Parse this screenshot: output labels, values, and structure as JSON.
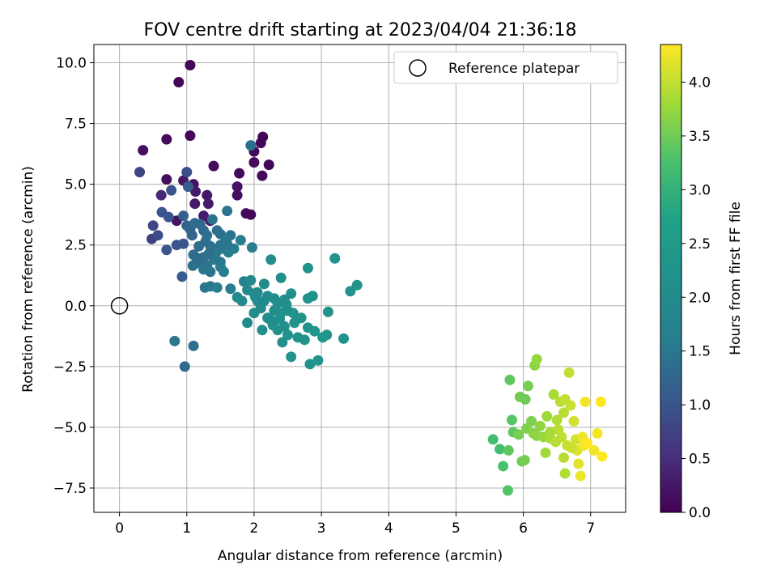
{
  "chart_data": {
    "type": "scatter",
    "title": "FOV centre drift starting at 2023/04/04 21:36:18",
    "xlabel": "Angular distance from reference (arcmin)",
    "ylabel": "Rotation from reference (arcmin)",
    "colorbar_label": "Hours from first FF file",
    "xlim": [
      -0.38,
      7.52
    ],
    "ylim": [
      -8.5,
      10.75
    ],
    "clim": [
      0,
      4.35
    ],
    "grid": true,
    "legend_position": "top-right",
    "colormap": "viridis",
    "x_ticks": [
      {
        "v": 0,
        "label": "0"
      },
      {
        "v": 1,
        "label": "1"
      },
      {
        "v": 2,
        "label": "2"
      },
      {
        "v": 3,
        "label": "3"
      },
      {
        "v": 4,
        "label": "4"
      },
      {
        "v": 5,
        "label": "5"
      },
      {
        "v": 6,
        "label": "6"
      },
      {
        "v": 7,
        "label": "7"
      }
    ],
    "y_ticks": [
      {
        "v": -7.5,
        "label": "−7.5"
      },
      {
        "v": -5,
        "label": "−5.0"
      },
      {
        "v": -2.5,
        "label": "−2.5"
      },
      {
        "v": 0,
        "label": "0.0"
      },
      {
        "v": 2.5,
        "label": "2.5"
      },
      {
        "v": 5,
        "label": "5.0"
      },
      {
        "v": 7.5,
        "label": "7.5"
      },
      {
        "v": 10,
        "label": "10.0"
      }
    ],
    "colorbar_ticks": [
      {
        "v": 0,
        "label": "0.0"
      },
      {
        "v": 0.5,
        "label": "0.5"
      },
      {
        "v": 1,
        "label": "1.0"
      },
      {
        "v": 1.5,
        "label": "1.5"
      },
      {
        "v": 2,
        "label": "2.0"
      },
      {
        "v": 2.5,
        "label": "2.5"
      },
      {
        "v": 3,
        "label": "3.0"
      },
      {
        "v": 3.5,
        "label": "3.5"
      },
      {
        "v": 4,
        "label": "4.0"
      }
    ],
    "reference": {
      "name": "Reference platepar",
      "x": 0,
      "y": 0
    },
    "points": [
      [
        1.05,
        9.9,
        0.05
      ],
      [
        0.88,
        9.2,
        0.08
      ],
      [
        1.05,
        7.0,
        0.05
      ],
      [
        0.7,
        6.85,
        0.1
      ],
      [
        0.35,
        6.4,
        0.15
      ],
      [
        2.1,
        6.7,
        0.05
      ],
      [
        2.13,
        6.95,
        0.04
      ],
      [
        2.0,
        6.35,
        0.1
      ],
      [
        1.95,
        6.6,
        1.4
      ],
      [
        2.0,
        5.9,
        0.1
      ],
      [
        2.12,
        5.35,
        0.08
      ],
      [
        2.22,
        5.8,
        0.06
      ],
      [
        1.4,
        5.75,
        0.12
      ],
      [
        1.78,
        5.45,
        0.1
      ],
      [
        1.75,
        4.9,
        0.2
      ],
      [
        1.75,
        4.55,
        0.15
      ],
      [
        0.7,
        5.2,
        0.15
      ],
      [
        0.95,
        5.15,
        0.25
      ],
      [
        1.1,
        5.0,
        0.2
      ],
      [
        1.13,
        4.7,
        0.3
      ],
      [
        1.3,
        4.55,
        0.25
      ],
      [
        1.32,
        4.2,
        0.3
      ],
      [
        1.12,
        4.2,
        0.3
      ],
      [
        0.62,
        4.55,
        0.45
      ],
      [
        1.0,
        5.5,
        0.9
      ],
      [
        1.02,
        4.9,
        1.1
      ],
      [
        0.77,
        4.75,
        1.0
      ],
      [
        0.3,
        5.5,
        0.8
      ],
      [
        0.85,
        3.5,
        0.2
      ],
      [
        1.35,
        3.5,
        0.2
      ],
      [
        1.88,
        3.8,
        0.1
      ],
      [
        1.95,
        3.75,
        0.05
      ],
      [
        1.25,
        3.7,
        0.3
      ],
      [
        0.5,
        3.3,
        0.8
      ],
      [
        0.48,
        2.75,
        0.7
      ],
      [
        0.57,
        2.9,
        0.9
      ],
      [
        0.63,
        3.85,
        1.0
      ],
      [
        0.73,
        3.65,
        1.0
      ],
      [
        0.7,
        2.3,
        1.0
      ],
      [
        0.85,
        2.5,
        1.0
      ],
      [
        0.95,
        2.55,
        1.0
      ],
      [
        0.93,
        1.2,
        1.1
      ],
      [
        0.95,
        3.7,
        1.15
      ],
      [
        1.0,
        3.3,
        1.2
      ],
      [
        1.05,
        3.15,
        1.2
      ],
      [
        1.08,
        2.9,
        1.25
      ],
      [
        1.12,
        3.4,
        1.3
      ],
      [
        1.2,
        3.35,
        1.3
      ],
      [
        1.25,
        3.1,
        1.3
      ],
      [
        1.3,
        2.9,
        1.35
      ],
      [
        1.38,
        3.55,
        1.4
      ],
      [
        1.45,
        3.1,
        1.4
      ],
      [
        1.5,
        2.95,
        1.4
      ],
      [
        1.6,
        3.9,
        1.45
      ],
      [
        1.65,
        2.9,
        1.45
      ],
      [
        1.1,
        2.1,
        1.3
      ],
      [
        1.15,
        1.9,
        1.35
      ],
      [
        1.2,
        1.75,
        1.4
      ],
      [
        1.25,
        2.0,
        1.4
      ],
      [
        1.3,
        1.65,
        1.45
      ],
      [
        1.35,
        1.4,
        1.45
      ],
      [
        1.4,
        1.9,
        1.5
      ],
      [
        1.45,
        2.25,
        1.5
      ],
      [
        1.5,
        1.8,
        1.5
      ],
      [
        1.55,
        2.35,
        1.55
      ],
      [
        1.58,
        2.65,
        1.55
      ],
      [
        1.62,
        2.2,
        1.6
      ],
      [
        1.7,
        2.35,
        1.6
      ],
      [
        1.8,
        2.7,
        1.6
      ],
      [
        1.35,
        2.45,
        1.4
      ],
      [
        1.28,
        2.65,
        1.4
      ],
      [
        1.42,
        2.0,
        1.5
      ],
      [
        1.18,
        2.45,
        1.35
      ],
      [
        1.09,
        1.65,
        1.4
      ],
      [
        1.25,
        1.5,
        1.5
      ],
      [
        1.5,
        1.6,
        1.55
      ],
      [
        1.55,
        1.4,
        1.6
      ],
      [
        1.35,
        0.8,
        1.5
      ],
      [
        1.27,
        0.75,
        1.5
      ],
      [
        1.45,
        0.75,
        1.6
      ],
      [
        1.65,
        0.7,
        1.6
      ],
      [
        1.97,
        2.4,
        1.6
      ],
      [
        1.85,
        1.0,
        1.65
      ],
      [
        1.1,
        -1.65,
        1.4
      ],
      [
        0.97,
        -2.5,
        1.3
      ],
      [
        0.82,
        -1.45,
        1.5
      ],
      [
        1.2,
        1.95,
        1.35
      ],
      [
        1.33,
        2.15,
        1.4
      ],
      [
        1.5,
        2.5,
        1.45
      ],
      [
        1.6,
        2.55,
        1.5
      ],
      [
        1.75,
        0.35,
        1.9
      ],
      [
        1.82,
        0.2,
        1.95
      ],
      [
        1.9,
        0.65,
        1.9
      ],
      [
        1.95,
        1.05,
        1.9
      ],
      [
        2.0,
        0.5,
        1.95
      ],
      [
        2.05,
        0.2,
        2.0
      ],
      [
        2.1,
        -0.1,
        2.0
      ],
      [
        2.15,
        0.9,
        2.0
      ],
      [
        2.2,
        0.4,
        2.05
      ],
      [
        2.25,
        1.9,
        2.1
      ],
      [
        2.3,
        0.3,
        2.05
      ],
      [
        2.35,
        0.1,
        2.1
      ],
      [
        2.4,
        -0.3,
        2.1
      ],
      [
        2.45,
        0.25,
        2.1
      ],
      [
        2.5,
        -0.2,
        2.15
      ],
      [
        2.55,
        0.5,
        2.15
      ],
      [
        1.9,
        -0.7,
        2.0
      ],
      [
        2.0,
        -0.3,
        2.05
      ],
      [
        2.12,
        -1.0,
        2.1
      ],
      [
        2.2,
        -0.5,
        2.1
      ],
      [
        2.28,
        -0.8,
        2.15
      ],
      [
        2.35,
        -1.0,
        2.15
      ],
      [
        2.42,
        -1.5,
        2.15
      ],
      [
        2.5,
        -1.2,
        2.2
      ],
      [
        2.55,
        -2.1,
        2.2
      ],
      [
        2.6,
        -0.7,
        2.2
      ],
      [
        2.65,
        -1.3,
        2.2
      ],
      [
        2.7,
        -0.5,
        2.25
      ],
      [
        2.75,
        -1.4,
        2.25
      ],
      [
        2.8,
        -0.9,
        2.25
      ],
      [
        2.83,
        -2.4,
        2.25
      ],
      [
        2.9,
        -1.05,
        2.3
      ],
      [
        2.95,
        -2.25,
        2.3
      ],
      [
        3.02,
        -1.3,
        2.3
      ],
      [
        3.08,
        -1.2,
        2.3
      ],
      [
        3.1,
        -0.25,
        2.25
      ],
      [
        3.33,
        -1.35,
        2.25
      ],
      [
        2.8,
        1.55,
        2.2
      ],
      [
        2.8,
        0.3,
        2.2
      ],
      [
        2.87,
        0.4,
        2.25
      ],
      [
        3.2,
        1.95,
        2.2
      ],
      [
        3.43,
        0.6,
        2.25
      ],
      [
        3.53,
        0.85,
        2.25
      ],
      [
        2.4,
        1.15,
        2.1
      ],
      [
        2.48,
        0.05,
        2.15
      ],
      [
        2.58,
        -0.3,
        2.2
      ],
      [
        2.3,
        -0.2,
        2.1
      ],
      [
        2.25,
        -0.6,
        2.05
      ],
      [
        2.15,
        0.2,
        2.0
      ],
      [
        2.05,
        0.55,
        1.95
      ],
      [
        2.02,
        0.35,
        2.0
      ],
      [
        2.38,
        -0.55,
        2.15
      ],
      [
        2.45,
        -0.85,
        2.15
      ],
      [
        5.55,
        -5.5,
        3.2
      ],
      [
        5.65,
        -5.9,
        3.2
      ],
      [
        5.7,
        -6.6,
        3.25
      ],
      [
        5.77,
        -7.6,
        3.3
      ],
      [
        5.8,
        -3.05,
        3.4
      ],
      [
        5.83,
        -4.7,
        3.35
      ],
      [
        5.85,
        -5.2,
        3.4
      ],
      [
        5.78,
        -5.95,
        3.4
      ],
      [
        5.95,
        -3.75,
        3.5
      ],
      [
        5.98,
        -6.4,
        3.5
      ],
      [
        6.03,
        -3.85,
        3.5
      ],
      [
        6.07,
        -3.3,
        3.55
      ],
      [
        6.12,
        -4.75,
        3.6
      ],
      [
        6.17,
        -2.45,
        3.7
      ],
      [
        6.2,
        -2.2,
        3.75
      ],
      [
        6.05,
        -5.05,
        3.6
      ],
      [
        5.93,
        -5.3,
        3.55
      ],
      [
        6.02,
        -6.35,
        3.55
      ],
      [
        6.15,
        -5.25,
        3.65
      ],
      [
        6.2,
        -5.35,
        3.7
      ],
      [
        6.25,
        -4.95,
        3.7
      ],
      [
        6.3,
        -5.4,
        3.75
      ],
      [
        6.35,
        -4.55,
        3.8
      ],
      [
        6.4,
        -5.45,
        3.85
      ],
      [
        6.45,
        -3.65,
        3.85
      ],
      [
        6.5,
        -4.7,
        3.9
      ],
      [
        6.52,
        -5.1,
        3.95
      ],
      [
        6.55,
        -3.95,
        3.95
      ],
      [
        6.6,
        -4.4,
        3.95
      ],
      [
        6.62,
        -3.85,
        4.0
      ],
      [
        6.57,
        -5.4,
        4.0
      ],
      [
        6.65,
        -5.75,
        4.05
      ],
      [
        6.7,
        -4.1,
        4.05
      ],
      [
        6.75,
        -4.75,
        4.1
      ],
      [
        6.78,
        -5.5,
        4.1
      ],
      [
        6.8,
        -5.95,
        4.15
      ],
      [
        6.82,
        -6.5,
        4.2
      ],
      [
        6.85,
        -7.0,
        4.25
      ],
      [
        6.88,
        -5.4,
        4.25
      ],
      [
        6.9,
        -5.75,
        4.3
      ],
      [
        6.92,
        -3.95,
        4.3
      ],
      [
        6.95,
        -5.65,
        4.35
      ],
      [
        7.05,
        -5.95,
        4.3
      ],
      [
        7.1,
        -5.25,
        4.3
      ],
      [
        7.15,
        -3.95,
        4.35
      ],
      [
        7.17,
        -6.2,
        4.35
      ],
      [
        6.68,
        -2.75,
        4.0
      ],
      [
        6.6,
        -6.25,
        3.95
      ],
      [
        6.62,
        -6.9,
        3.9
      ],
      [
        6.48,
        -5.6,
        3.95
      ],
      [
        6.33,
        -6.05,
        3.8
      ],
      [
        6.4,
        -5.2,
        3.85
      ],
      [
        6.72,
        -5.85,
        4.05
      ]
    ]
  }
}
